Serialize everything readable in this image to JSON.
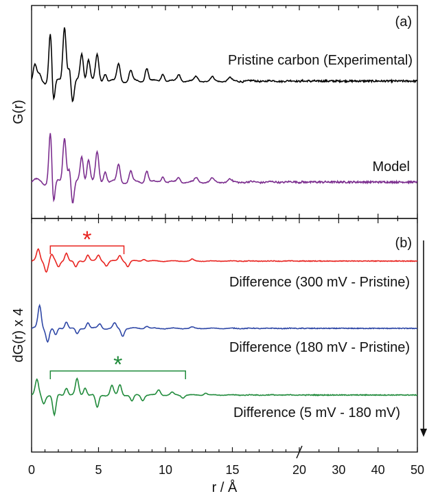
{
  "chart_data": {
    "type": "line",
    "xlabel": "r / Å",
    "x_ticks": [
      "0",
      "5",
      "10",
      "15",
      "20",
      "30",
      "40",
      "50"
    ],
    "x_axis": {
      "segments": [
        {
          "range": [
            0,
            20
          ],
          "note": "linear"
        },
        {
          "range": [
            20,
            50
          ],
          "note": "compressed linear"
        }
      ],
      "break_at": 20
    },
    "panels": [
      {
        "panel_label": "(a)",
        "ylabel": "G(r)",
        "series": [
          {
            "name": "Pristine carbon (Experimental)",
            "color": "#000000",
            "peaks": [
              [
                0.25,
                0.25
              ],
              [
                0.6,
                0.1
              ],
              [
                1.42,
                1.0
              ],
              [
                1.6,
                -0.55
              ],
              [
                2.46,
                1.0
              ],
              [
                2.85,
                0.3
              ],
              [
                3.05,
                -0.45
              ],
              [
                3.75,
                0.5
              ],
              [
                4.25,
                0.4
              ],
              [
                4.9,
                0.45
              ],
              [
                5.5,
                0.15
              ],
              [
                6.5,
                0.3
              ],
              [
                7.4,
                0.18
              ],
              [
                8.6,
                0.24
              ],
              [
                9.8,
                0.14
              ],
              [
                11.0,
                0.12
              ],
              [
                12.3,
                0.08
              ],
              [
                13.5,
                0.07
              ],
              [
                14.8,
                0.06
              ]
            ]
          },
          {
            "name": "Model",
            "color": "#7b2d8e",
            "peaks": [
              [
                1.42,
                1.0
              ],
              [
                1.6,
                -0.55
              ],
              [
                2.46,
                0.8
              ],
              [
                2.85,
                0.3
              ],
              [
                3.05,
                -0.45
              ],
              [
                3.75,
                0.45
              ],
              [
                4.25,
                0.4
              ],
              [
                4.9,
                0.5
              ],
              [
                5.5,
                0.2
              ],
              [
                6.5,
                0.3
              ],
              [
                7.4,
                0.18
              ],
              [
                8.6,
                0.2
              ],
              [
                9.8,
                0.1
              ],
              [
                11.0,
                0.08
              ],
              [
                12.3,
                0.07
              ],
              [
                13.5,
                0.06
              ],
              [
                14.8,
                0.05
              ]
            ]
          }
        ]
      },
      {
        "panel_label": "(b)",
        "ylabel": "dG(r) x 4",
        "series": [
          {
            "name": "Difference (300 mV - Pristine)",
            "color": "#e8231f",
            "peaks": [
              [
                0.5,
                0.5
              ],
              [
                1.1,
                -0.45
              ],
              [
                1.5,
                0.3
              ],
              [
                2.0,
                -0.3
              ],
              [
                2.6,
                0.4
              ],
              [
                3.3,
                -0.3
              ],
              [
                4.2,
                0.3
              ],
              [
                5.0,
                0.25
              ],
              [
                5.6,
                -0.2
              ],
              [
                6.6,
                0.25
              ],
              [
                7.2,
                -0.25
              ],
              [
                8.4,
                0.1
              ],
              [
                12.0,
                0.08
              ]
            ]
          },
          {
            "name": "Difference (180 mV - Pristine)",
            "color": "#2e47a6",
            "peaks": [
              [
                0.6,
                0.9
              ],
              [
                1.2,
                -0.5
              ],
              [
                1.8,
                -0.3
              ],
              [
                2.6,
                0.3
              ],
              [
                3.4,
                -0.25
              ],
              [
                4.2,
                0.25
              ],
              [
                5.1,
                0.18
              ],
              [
                6.2,
                0.2
              ],
              [
                6.8,
                -0.3
              ],
              [
                8.6,
                0.1
              ],
              [
                12.0,
                0.05
              ]
            ]
          },
          {
            "name": "Difference (5 mV - 180 mV)",
            "color": "#1f8a3a",
            "peaks": [
              [
                0.4,
                0.55
              ],
              [
                0.9,
                -0.3
              ],
              [
                1.7,
                -0.8
              ],
              [
                2.6,
                0.3
              ],
              [
                3.4,
                0.6
              ],
              [
                4.0,
                0.3
              ],
              [
                4.9,
                -0.5
              ],
              [
                6.0,
                0.35
              ],
              [
                6.6,
                0.4
              ],
              [
                7.5,
                -0.25
              ],
              [
                8.3,
                -0.2
              ],
              [
                9.5,
                0.2
              ],
              [
                10.5,
                0.1
              ],
              [
                11.3,
                -0.1
              ],
              [
                13.0,
                0.08
              ]
            ]
          }
        ],
        "annotations": [
          {
            "symbol": "*",
            "color": "#e8231f",
            "bracket_x": [
              1.4,
              6.9
            ],
            "series": "Difference (300 mV - Pristine)"
          },
          {
            "symbol": "*",
            "color": "#1f8a3a",
            "bracket_x": [
              1.4,
              11.5
            ],
            "series": "Difference (5 mV - 180 mV)"
          }
        ]
      }
    ]
  }
}
